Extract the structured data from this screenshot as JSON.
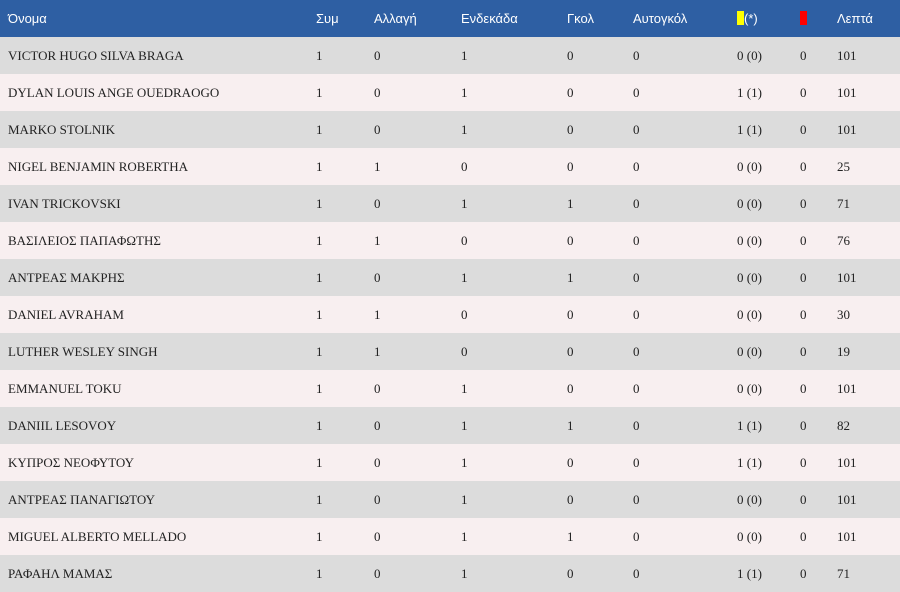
{
  "colors": {
    "header_bg": "#2e5fa3",
    "row_odd": "#dcdcdc",
    "row_even": "#f8eff0",
    "yellow_card": "#ffff00",
    "red_card": "#ff0000"
  },
  "header": {
    "name": "Όνομα",
    "apps": "Συμ",
    "sub": "Αλλαγή",
    "start": "Ενδεκάδα",
    "goals": "Γκολ",
    "own_goals": "Αυτογκόλ",
    "yellow_suffix": "(*)",
    "yellow_icon": "yellow-card-icon",
    "red_icon": "red-card-icon",
    "minutes": "Λεπτά"
  },
  "rows": [
    {
      "name": "VICTOR HUGO SILVA BRAGA",
      "apps": "1",
      "sub": "0",
      "start": "1",
      "goals": "0",
      "own_goals": "0",
      "yellow": "0 (0)",
      "red": "0",
      "minutes": "101"
    },
    {
      "name": "DYLAN LOUIS ANGE OUEDRAOGO",
      "apps": "1",
      "sub": "0",
      "start": "1",
      "goals": "0",
      "own_goals": "0",
      "yellow": "1 (1)",
      "red": "0",
      "minutes": "101"
    },
    {
      "name": "MARKO STOLNIK",
      "apps": "1",
      "sub": "0",
      "start": "1",
      "goals": "0",
      "own_goals": "0",
      "yellow": "1 (1)",
      "red": "0",
      "minutes": "101"
    },
    {
      "name": "NIGEL BENJAMIN ROBERTHA",
      "apps": "1",
      "sub": "1",
      "start": "0",
      "goals": "0",
      "own_goals": "0",
      "yellow": "0 (0)",
      "red": "0",
      "minutes": "25"
    },
    {
      "name": "IVAN TRICKOVSKI",
      "apps": "1",
      "sub": "0",
      "start": "1",
      "goals": "1",
      "own_goals": "0",
      "yellow": "0 (0)",
      "red": "0",
      "minutes": "71"
    },
    {
      "name": "ΒΑΣΙΛΕΙΟΣ ΠΑΠΑΦΩΤΗΣ",
      "apps": "1",
      "sub": "1",
      "start": "0",
      "goals": "0",
      "own_goals": "0",
      "yellow": "0 (0)",
      "red": "0",
      "minutes": "76"
    },
    {
      "name": "ΑΝΤΡΕΑΣ ΜΑΚΡΗΣ",
      "apps": "1",
      "sub": "0",
      "start": "1",
      "goals": "1",
      "own_goals": "0",
      "yellow": "0 (0)",
      "red": "0",
      "minutes": "101"
    },
    {
      "name": "DANIEL AVRAHAM",
      "apps": "1",
      "sub": "1",
      "start": "0",
      "goals": "0",
      "own_goals": "0",
      "yellow": "0 (0)",
      "red": "0",
      "minutes": "30"
    },
    {
      "name": "LUTHER WESLEY SINGH",
      "apps": "1",
      "sub": "1",
      "start": "0",
      "goals": "0",
      "own_goals": "0",
      "yellow": "0 (0)",
      "red": "0",
      "minutes": "19"
    },
    {
      "name": "EMMANUEL TOKU",
      "apps": "1",
      "sub": "0",
      "start": "1",
      "goals": "0",
      "own_goals": "0",
      "yellow": "0 (0)",
      "red": "0",
      "minutes": "101"
    },
    {
      "name": "DANIIL LESOVOY",
      "apps": "1",
      "sub": "0",
      "start": "1",
      "goals": "1",
      "own_goals": "0",
      "yellow": "1 (1)",
      "red": "0",
      "minutes": "82"
    },
    {
      "name": "ΚΥΠΡΟΣ ΝΕΟΦΥΤΟΥ",
      "apps": "1",
      "sub": "0",
      "start": "1",
      "goals": "0",
      "own_goals": "0",
      "yellow": "1 (1)",
      "red": "0",
      "minutes": "101"
    },
    {
      "name": "ΑΝΤΡΕΑΣ ΠΑΝΑΓΙΩΤΟΥ",
      "apps": "1",
      "sub": "0",
      "start": "1",
      "goals": "0",
      "own_goals": "0",
      "yellow": "0 (0)",
      "red": "0",
      "minutes": "101"
    },
    {
      "name": "MIGUEL ALBERTO MELLADO",
      "apps": "1",
      "sub": "0",
      "start": "1",
      "goals": "1",
      "own_goals": "0",
      "yellow": "0 (0)",
      "red": "0",
      "minutes": "101"
    },
    {
      "name": "ΡΑΦΑΗΛ ΜΑΜΑΣ",
      "apps": "1",
      "sub": "0",
      "start": "1",
      "goals": "0",
      "own_goals": "0",
      "yellow": "1 (1)",
      "red": "0",
      "minutes": "71"
    }
  ]
}
